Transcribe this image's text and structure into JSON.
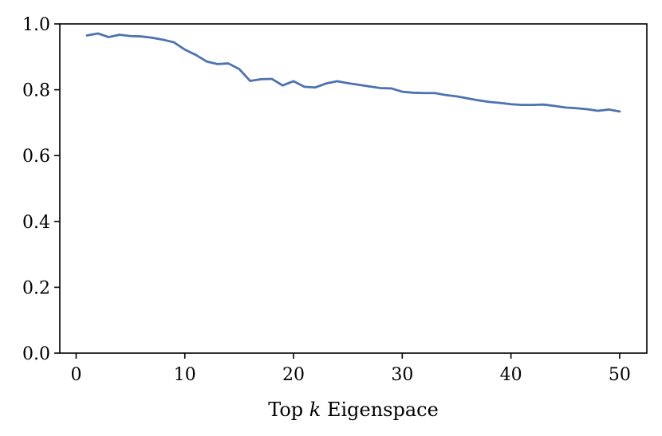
{
  "chart_data": {
    "type": "line",
    "title": "",
    "xlabel": {
      "before": "Top ",
      "variable": "k",
      "after": " Eigenspace"
    },
    "ylabel": "",
    "xlim": [
      -1.5,
      52.5
    ],
    "ylim": [
      0.0,
      1.0
    ],
    "xticks": [
      0,
      10,
      20,
      30,
      40,
      50
    ],
    "yticks": [
      0.0,
      0.2,
      0.4,
      0.6,
      0.8,
      1.0
    ],
    "xtick_labels": [
      "0",
      "10",
      "20",
      "30",
      "40",
      "50"
    ],
    "ytick_labels": [
      "0.0",
      "0.2",
      "0.4",
      "0.6",
      "0.8",
      "1.0"
    ],
    "grid": false,
    "legend": "none",
    "series": [
      {
        "color": "#4c72b0",
        "x": [
          1,
          2,
          3,
          4,
          5,
          6,
          7,
          8,
          9,
          10,
          11,
          12,
          13,
          14,
          15,
          16,
          17,
          18,
          19,
          20,
          21,
          22,
          23,
          24,
          25,
          26,
          27,
          28,
          29,
          30,
          31,
          32,
          33,
          34,
          35,
          36,
          37,
          38,
          39,
          40,
          41,
          42,
          43,
          44,
          45,
          46,
          47,
          48,
          49,
          50
        ],
        "y": [
          0.965,
          0.971,
          0.96,
          0.967,
          0.963,
          0.962,
          0.958,
          0.952,
          0.944,
          0.922,
          0.906,
          0.886,
          0.878,
          0.88,
          0.863,
          0.827,
          0.832,
          0.833,
          0.813,
          0.826,
          0.809,
          0.807,
          0.819,
          0.826,
          0.82,
          0.815,
          0.81,
          0.805,
          0.804,
          0.794,
          0.791,
          0.79,
          0.79,
          0.784,
          0.78,
          0.774,
          0.768,
          0.763,
          0.76,
          0.756,
          0.754,
          0.754,
          0.755,
          0.751,
          0.746,
          0.744,
          0.741,
          0.736,
          0.74,
          0.734
        ]
      }
    ]
  }
}
